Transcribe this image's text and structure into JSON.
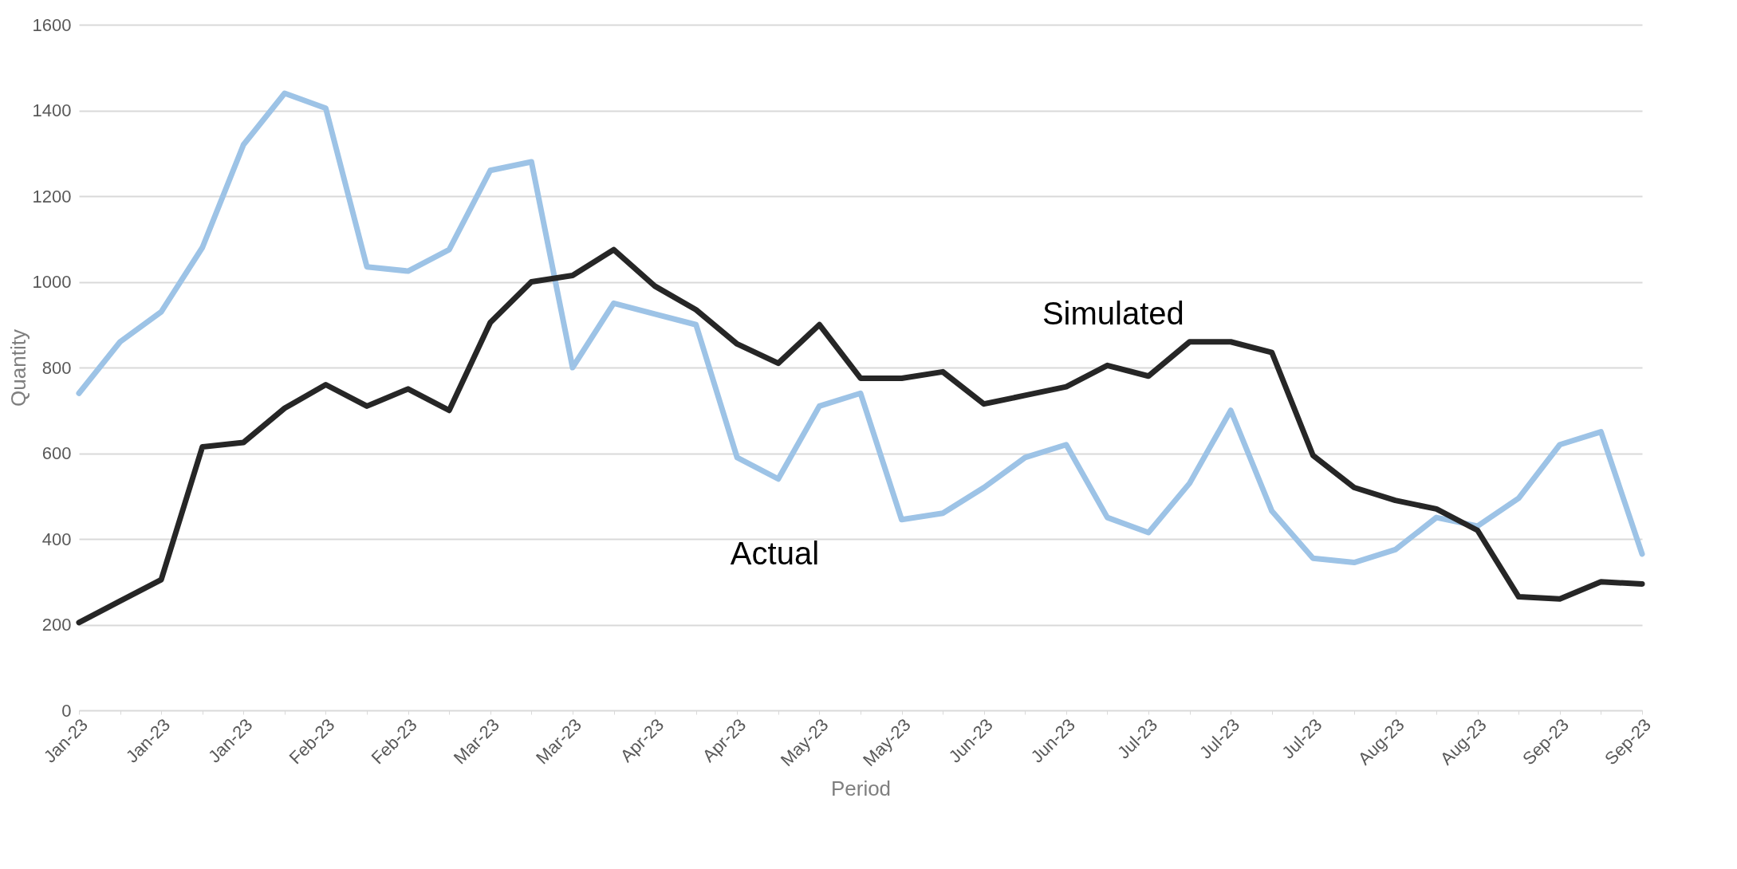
{
  "chart_data": {
    "type": "line",
    "xlabel": "Period",
    "ylabel": "Quantity",
    "categories": [
      "Jan-23",
      null,
      "Jan-23",
      null,
      "Jan-23",
      null,
      "Feb-23",
      null,
      "Feb-23",
      null,
      "Mar-23",
      null,
      "Mar-23",
      null,
      "Apr-23",
      null,
      "Apr-23",
      null,
      "May-23",
      null,
      "May-23",
      null,
      "Jun-23",
      null,
      "Jun-23",
      null,
      "Jul-23",
      null,
      "Jul-23",
      null,
      "Jul-23",
      null,
      "Aug-23",
      null,
      "Aug-23",
      null,
      "Sep-23",
      null,
      "Sep-23"
    ],
    "series": [
      {
        "name": "Actual",
        "color": "#9dc3e6",
        "values": [
          740,
          860,
          930,
          1080,
          1320,
          1440,
          1405,
          1035,
          1025,
          1075,
          1260,
          1280,
          800,
          950,
          925,
          900,
          590,
          540,
          710,
          740,
          445,
          460,
          520,
          590,
          620,
          450,
          415,
          530,
          700,
          465,
          355,
          345,
          375,
          450,
          430,
          495,
          620,
          650,
          365
        ]
      },
      {
        "name": "Simulated",
        "color": "#262626",
        "values": [
          205,
          255,
          305,
          615,
          625,
          705,
          760,
          710,
          750,
          700,
          905,
          1000,
          1015,
          1075,
          990,
          935,
          855,
          810,
          900,
          775,
          775,
          790,
          715,
          735,
          755,
          805,
          780,
          860,
          860,
          835,
          595,
          520,
          490,
          470,
          420,
          265,
          260,
          300,
          295
        ]
      }
    ],
    "ylim": [
      0,
      1600
    ],
    "yticks": [
      0,
      200,
      400,
      600,
      800,
      1000,
      1200,
      1400,
      1600
    ],
    "grid": "y",
    "legend": false,
    "marker": "none",
    "line_style": "solid"
  }
}
